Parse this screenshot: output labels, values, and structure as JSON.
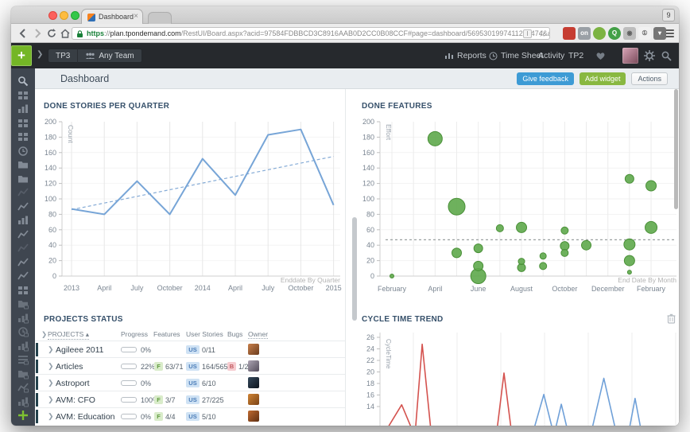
{
  "browser": {
    "tab_title": "Dashboard",
    "tab_count_badge": "9",
    "url_scheme": "https",
    "url_sep": "://",
    "url_host": "plan.tpondemand.com",
    "url_path": "/RestUI/Board.aspx?acid=97584FDBBCD3C8916AAB0D2CC0B08CCF#page=dashboard/5695301997411208474&appCo...",
    "page_action_label": "I",
    "extensions": [
      "mask-extension-icon",
      "cast-extension-icon",
      "green-ball-extension-icon",
      "pin-extension-icon",
      "camera-extension-icon",
      "info-extension-icon",
      "pocket-extension-icon"
    ]
  },
  "topnav": {
    "project": "TP3",
    "team": "Any Team",
    "menu": [
      "Reports",
      "Time Sheet",
      "Activity",
      "TP2"
    ]
  },
  "page_header": {
    "title": "Dashboard",
    "give_feedback": "Give feedback",
    "add_widget": "Add widget",
    "actions": "Actions"
  },
  "sidebar": {
    "icons": [
      {
        "name": "search-icon",
        "variant": "bright"
      },
      {
        "name": "board-icon",
        "variant": "normal"
      },
      {
        "name": "bar-chart-icon",
        "variant": "normal"
      },
      {
        "name": "board-icon",
        "variant": "normal"
      },
      {
        "name": "board-icon",
        "variant": "normal"
      },
      {
        "name": "clock-icon",
        "variant": "normal"
      },
      {
        "name": "folder-icon",
        "variant": "solid"
      },
      {
        "name": "folder-icon",
        "variant": "solid"
      },
      {
        "name": "line-chart-icon",
        "variant": "dim"
      },
      {
        "name": "line-chart-icon",
        "variant": "normal"
      },
      {
        "name": "bar-chart-icon",
        "variant": "normal"
      },
      {
        "name": "line-chart-icon",
        "variant": "normal"
      },
      {
        "name": "line-chart-icon",
        "variant": "dim"
      },
      {
        "name": "line-chart-icon",
        "variant": "normal"
      },
      {
        "name": "line-chart-icon",
        "variant": "normal"
      },
      {
        "name": "board-icon",
        "variant": "normal"
      },
      {
        "name": "folder-locked-icon",
        "variant": "locked"
      },
      {
        "name": "bar-chart-locked-icon",
        "variant": "locked"
      },
      {
        "name": "clock-locked-icon",
        "variant": "locked"
      },
      {
        "name": "bar-chart-locked-icon",
        "variant": "locked"
      },
      {
        "name": "list-locked-icon",
        "variant": "locked"
      },
      {
        "name": "folder-locked-icon",
        "variant": "locked"
      },
      {
        "name": "line-chart-locked-icon",
        "variant": "locked"
      },
      {
        "name": "bar-chart-locked-icon",
        "variant": "locked"
      },
      {
        "name": "add-view-icon",
        "variant": "plus"
      }
    ]
  },
  "chart_data": [
    {
      "id": "done_stories",
      "type": "line",
      "title": "DONE STORIES PER QUARTER",
      "ylabel": "Count",
      "xlabel": "Enddate By Quarter",
      "categories": [
        "2013",
        "April",
        "July",
        "October",
        "2014",
        "April",
        "July",
        "October",
        "2015"
      ],
      "values": [
        87,
        80,
        123,
        80,
        152,
        105,
        183,
        190,
        92
      ],
      "trend": [
        86,
        155
      ],
      "ylim": [
        0,
        200
      ],
      "yticks": [
        0,
        20,
        40,
        60,
        80,
        100,
        120,
        140,
        160,
        180,
        200
      ],
      "line_color": "#77a5d7"
    },
    {
      "id": "done_features",
      "type": "scatter",
      "title": "DONE FEATURES",
      "ylabel": "Effort",
      "xlabel": "End Date By Month",
      "xticks": [
        "February",
        "April",
        "June",
        "August",
        "October",
        "December",
        "February"
      ],
      "months_span": 12,
      "ylim": [
        0,
        200
      ],
      "yticks": [
        0,
        20,
        40,
        60,
        80,
        100,
        120,
        140,
        160,
        180,
        200
      ],
      "avg_line": 47,
      "bubbles": [
        [
          0,
          0,
          2.5
        ],
        [
          2,
          178,
          9
        ],
        [
          3,
          90,
          10.5
        ],
        [
          3,
          30,
          6
        ],
        [
          4,
          36,
          5.5
        ],
        [
          4,
          13,
          6
        ],
        [
          4,
          0,
          9.5
        ],
        [
          5,
          62,
          4.5
        ],
        [
          6,
          63,
          6.5
        ],
        [
          6,
          19,
          4
        ],
        [
          6,
          11,
          5
        ],
        [
          7,
          26,
          4
        ],
        [
          7,
          13,
          4.5
        ],
        [
          8,
          59,
          4.5
        ],
        [
          8,
          39,
          5.5
        ],
        [
          8,
          30,
          4.5
        ],
        [
          9,
          40,
          6
        ],
        [
          11,
          126,
          5.5
        ],
        [
          11,
          41,
          7
        ],
        [
          11,
          20,
          6.5
        ],
        [
          11,
          5,
          2.5
        ],
        [
          12,
          117,
          6.5
        ],
        [
          12,
          63,
          7.5
        ]
      ],
      "bubble_color": "#5ea94b"
    },
    {
      "id": "projects_status",
      "type": "table",
      "title": "PROJECTS STATUS",
      "columns": [
        "PROJECTS",
        "Progress",
        "Features",
        "User Stories",
        "Bugs",
        "Owner"
      ],
      "rows": [
        {
          "name": "Agileee 2011",
          "progress": "0%",
          "progress_value": 0,
          "features": "",
          "user_stories": "0/11",
          "bugs": "",
          "avatar": [
            "#c87f4a",
            "#6b3d1e"
          ]
        },
        {
          "name": "Articles",
          "progress": "22%",
          "progress_value": 22,
          "features": "63/71",
          "user_stories": "164/565",
          "bugs": "1/2",
          "avatar": [
            "#aba3b2",
            "#544e5c"
          ]
        },
        {
          "name": "Astroport",
          "progress": "0%",
          "progress_value": 0,
          "features": "",
          "user_stories": "6/10",
          "bugs": "",
          "avatar": [
            "#35495c",
            "#0d141d"
          ]
        },
        {
          "name": "AVM: CFO",
          "progress": "100%",
          "progress_value": 100,
          "features": "3/7",
          "user_stories": "27/225",
          "bugs": "",
          "avatar": [
            "#d08434",
            "#7a4316"
          ]
        },
        {
          "name": "AVM: Education",
          "progress": "0%",
          "progress_value": 0,
          "features": "4/4",
          "user_stories": "5/10",
          "bugs": "",
          "avatar": [
            "#c06a30",
            "#5e2f12"
          ]
        }
      ]
    },
    {
      "id": "cycle_time",
      "type": "line",
      "title": "CYCLE TIME TREND",
      "ylabel": "CycleTime",
      "yticks": [
        26,
        24,
        22,
        20,
        18,
        16,
        14
      ],
      "ylim_visible": [
        13,
        26
      ],
      "series": [
        {
          "name": "red",
          "color": "#d4524e",
          "points": [
            [
              0.0,
              10.5
            ],
            [
              0.028,
              10.5
            ],
            [
              0.073,
              14.3
            ],
            [
              0.104,
              10.5
            ],
            [
              0.12,
              10.5
            ],
            [
              0.142,
              24.8
            ],
            [
              0.17,
              10.5
            ],
            [
              0.395,
              10.5
            ],
            [
              0.417,
              19.8
            ],
            [
              0.44,
              10.5
            ]
          ]
        },
        {
          "name": "blue",
          "color": "#6fa0d8",
          "points": [
            [
              0.52,
              10.5
            ],
            [
              0.551,
              16.1
            ],
            [
              0.578,
              10.5
            ],
            [
              0.592,
              10.5
            ],
            [
              0.61,
              14.4
            ],
            [
              0.628,
              10.5
            ],
            [
              0.715,
              10.5
            ],
            [
              0.753,
              18.9
            ],
            [
              0.79,
              10.5
            ],
            [
              0.84,
              10.5
            ],
            [
              0.858,
              15.4
            ],
            [
              0.876,
              10.5
            ]
          ]
        }
      ]
    }
  ],
  "colors": {
    "accent_blue": "#3d9bd5",
    "accent_green": "#89b841",
    "bubble_green": "#5ea94b",
    "line_blue": "#77a5d7",
    "line_red": "#d4524e",
    "nav_dark": "#26292d",
    "sidebar_dark": "#3f4650"
  }
}
